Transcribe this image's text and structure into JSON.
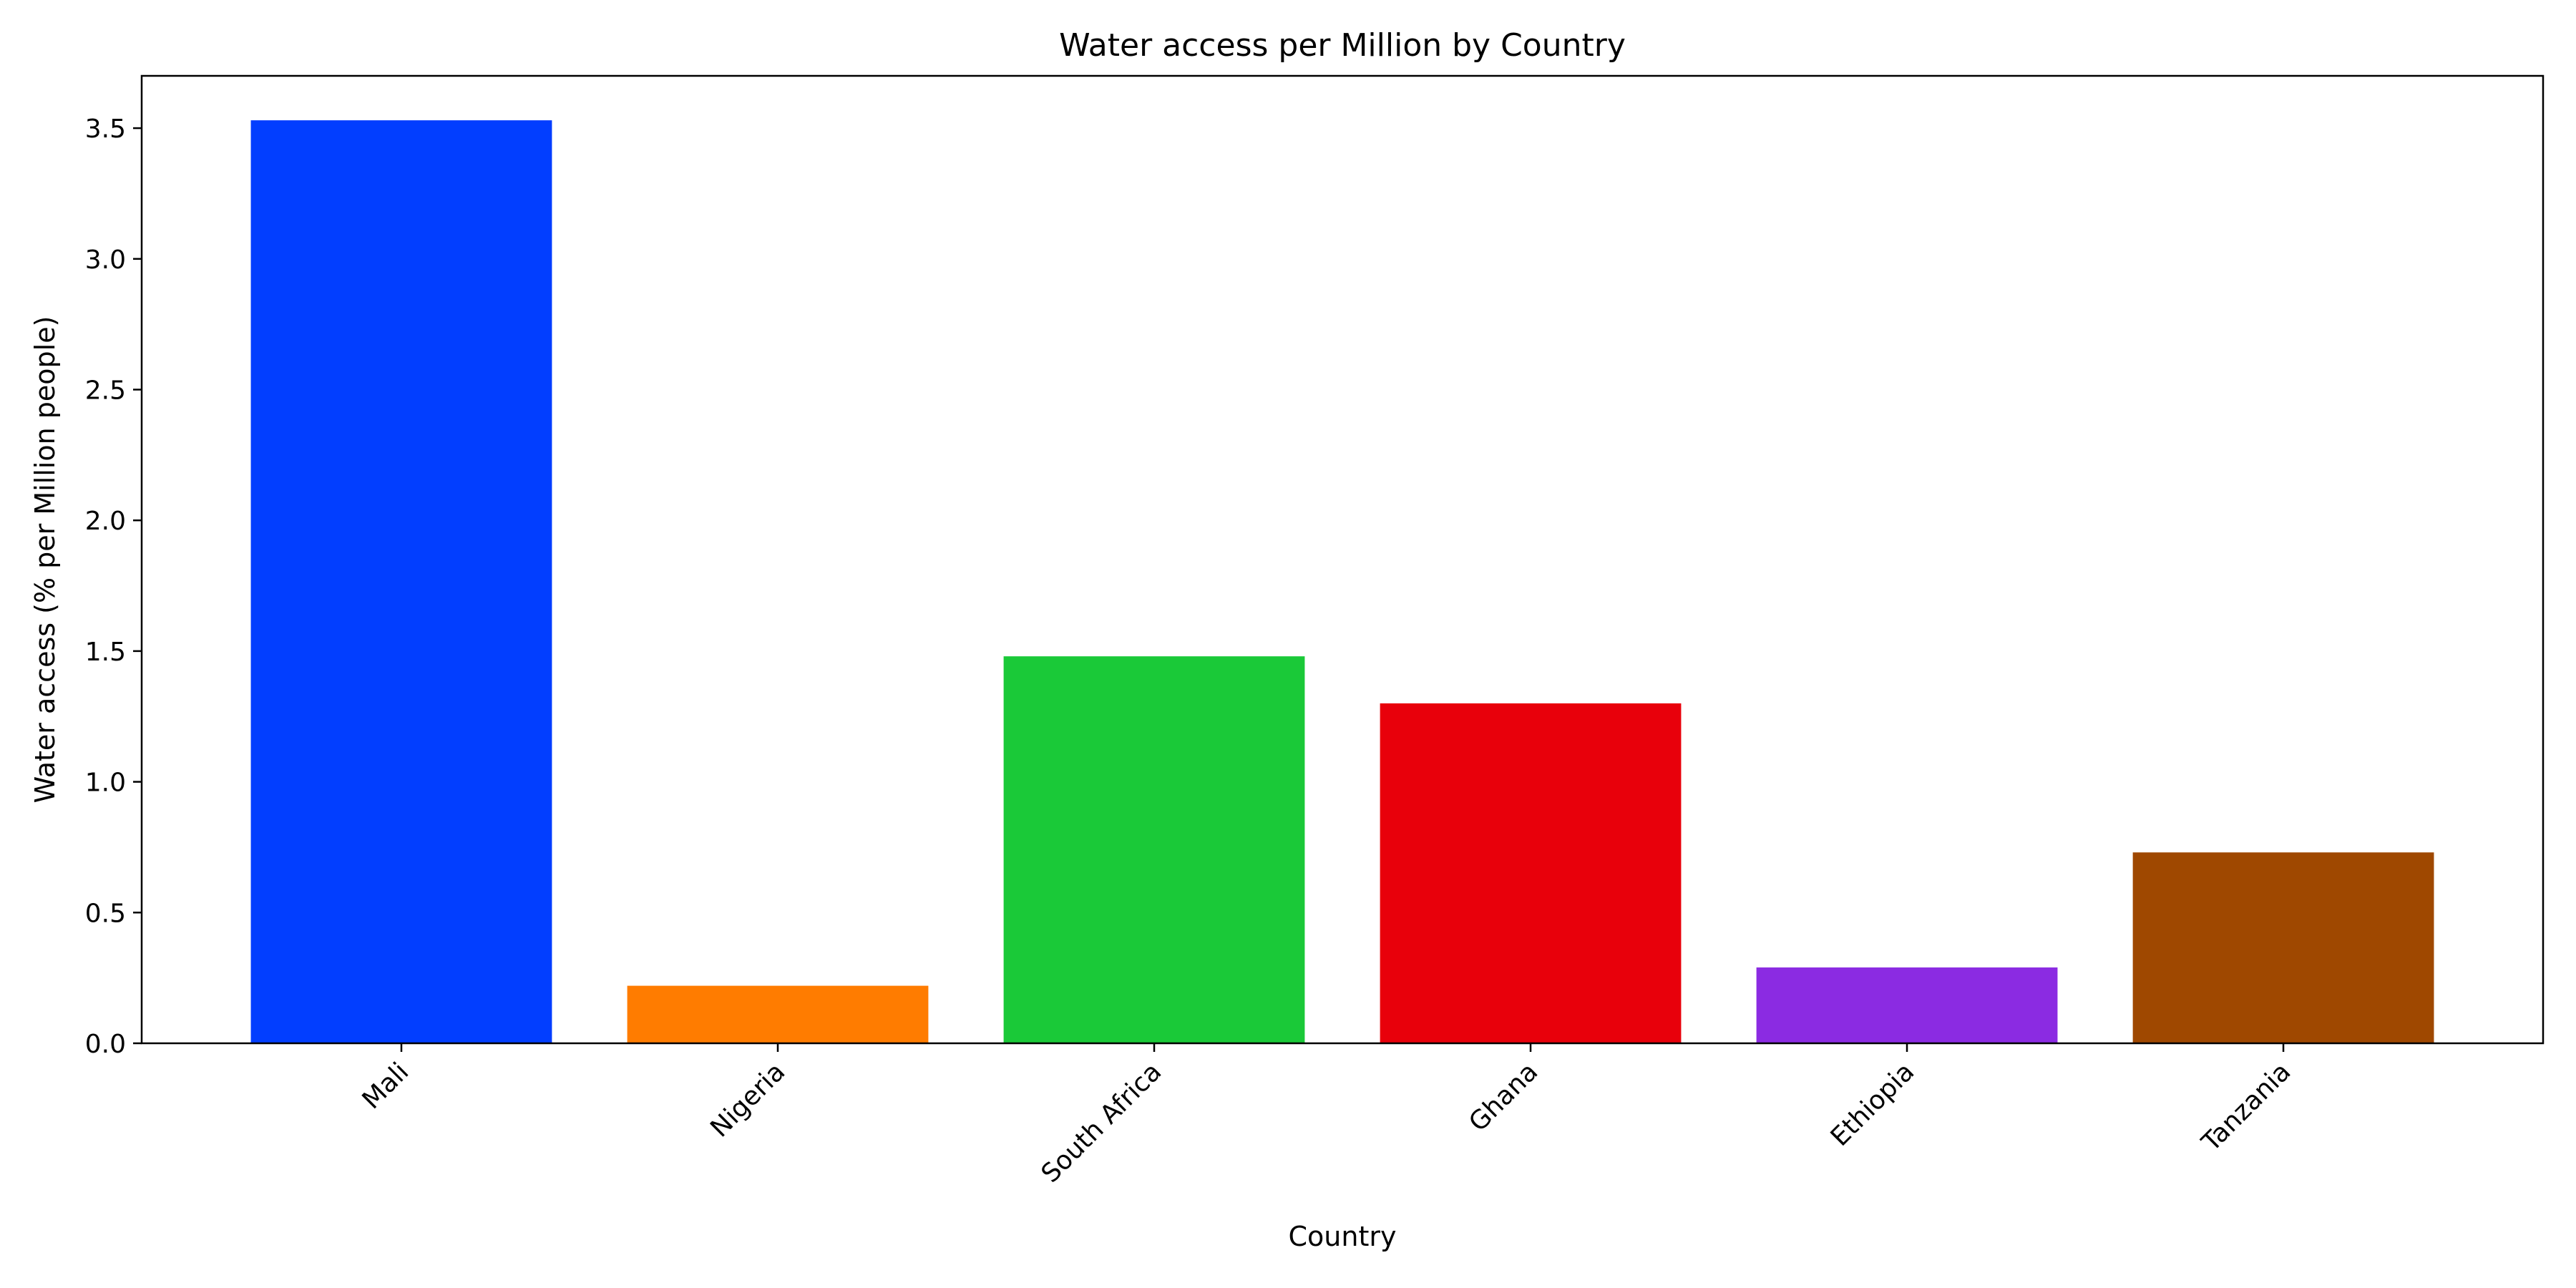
{
  "chart_data": {
    "type": "bar",
    "title": "Water access per Million by Country",
    "xlabel": "Country",
    "ylabel": "Water access (% per Million people)",
    "categories": [
      "Mali",
      "Nigeria",
      "South Africa",
      "Ghana",
      "Ethiopia",
      "Tanzania"
    ],
    "values": [
      3.53,
      0.22,
      1.48,
      1.3,
      0.29,
      0.73
    ],
    "colors": [
      "#023eff",
      "#ff7c00",
      "#1ac938",
      "#e8000b",
      "#8b2be2",
      "#9f4800"
    ],
    "ylim": [
      0,
      3.7
    ],
    "yticks": [
      0.0,
      0.5,
      1.0,
      1.5,
      2.0,
      2.5,
      3.0,
      3.5
    ],
    "ytick_labels": [
      "0.0",
      "0.5",
      "1.0",
      "1.5",
      "2.0",
      "2.5",
      "3.0",
      "3.5"
    ],
    "grid": false,
    "legend": "none"
  }
}
